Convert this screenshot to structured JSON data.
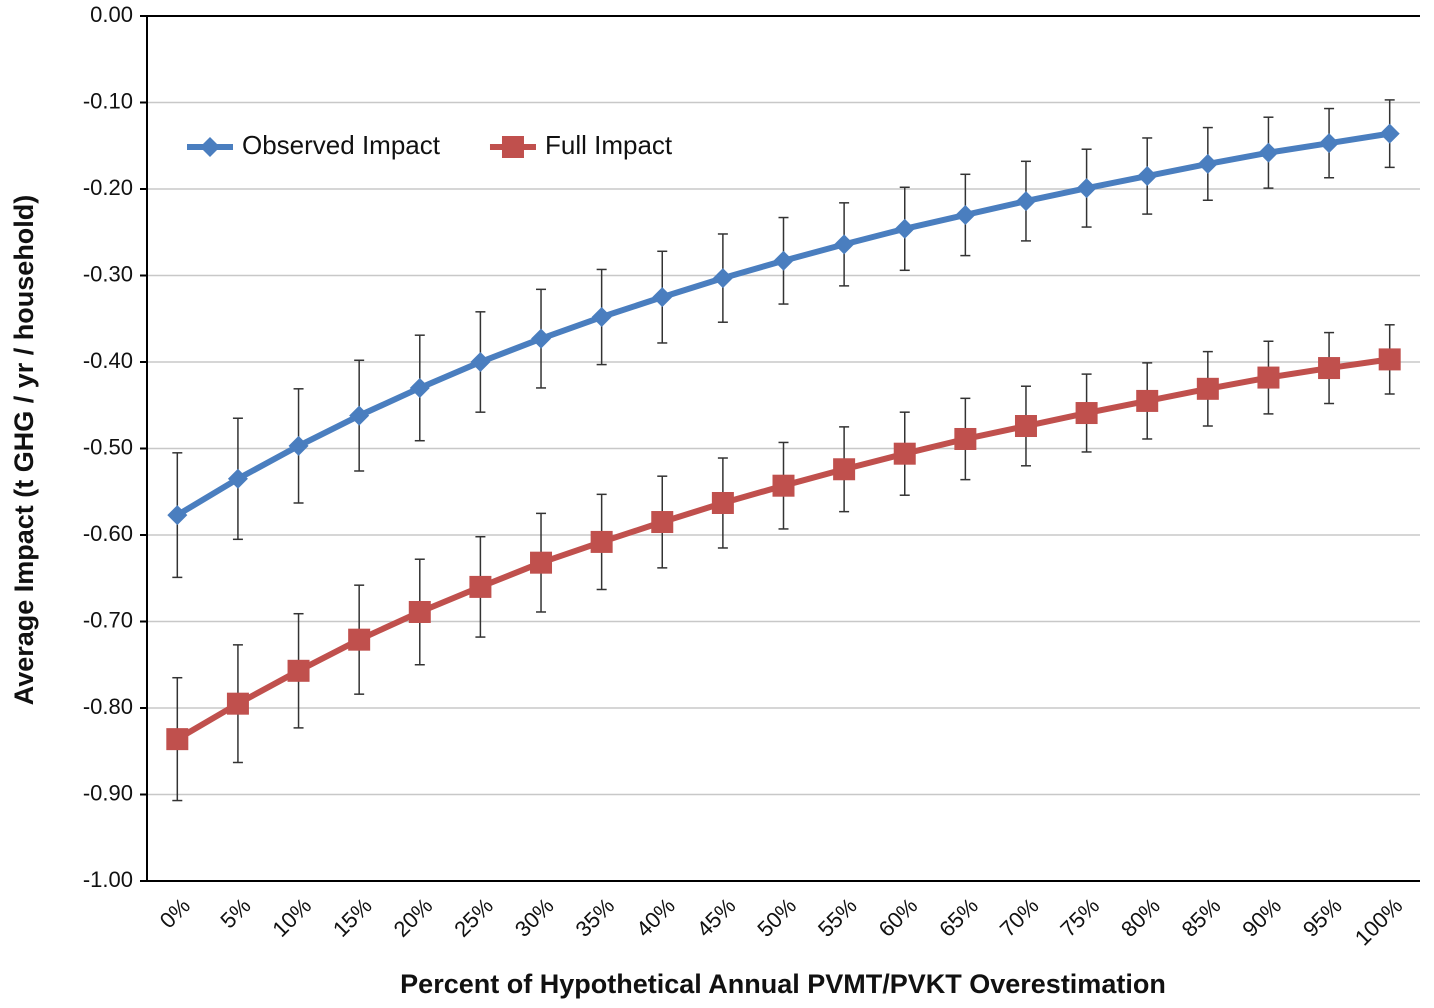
{
  "chart_data": {
    "type": "line",
    "x_label": "Percent of Hypothetical Annual PVMT/PVKT Overestimation",
    "y_label": "Average Impact (t GHG / yr / household)",
    "categories": [
      "0%",
      "5%",
      "10%",
      "15%",
      "20%",
      "25%",
      "30%",
      "35%",
      "40%",
      "45%",
      "50%",
      "55%",
      "60%",
      "65%",
      "70%",
      "75%",
      "80%",
      "85%",
      "90%",
      "95%",
      "100%"
    ],
    "series": [
      {
        "name": "Observed Impact",
        "color": "#4a7ebf",
        "marker": "diamond",
        "values": [
          -0.577,
          -0.535,
          -0.497,
          -0.462,
          -0.43,
          -0.4,
          -0.373,
          -0.348,
          -0.325,
          -0.303,
          -0.283,
          -0.264,
          -0.246,
          -0.23,
          -0.214,
          -0.199,
          -0.185,
          -0.171,
          -0.158,
          -0.147,
          -0.136
        ],
        "errors": [
          0.072,
          0.07,
          0.066,
          0.064,
          0.061,
          0.058,
          0.057,
          0.055,
          0.053,
          0.051,
          0.05,
          0.048,
          0.048,
          0.047,
          0.046,
          0.045,
          0.044,
          0.042,
          0.041,
          0.04,
          0.039
        ]
      },
      {
        "name": "Full Impact",
        "color": "#c0504d",
        "marker": "square",
        "values": [
          -0.836,
          -0.795,
          -0.757,
          -0.721,
          -0.689,
          -0.66,
          -0.632,
          -0.608,
          -0.585,
          -0.563,
          -0.543,
          -0.524,
          -0.506,
          -0.489,
          -0.474,
          -0.459,
          -0.445,
          -0.431,
          -0.418,
          -0.407,
          -0.397
        ],
        "errors": [
          0.071,
          0.068,
          0.066,
          0.063,
          0.061,
          0.058,
          0.057,
          0.055,
          0.053,
          0.052,
          0.05,
          0.049,
          0.048,
          0.047,
          0.046,
          0.045,
          0.044,
          0.043,
          0.042,
          0.041,
          0.04
        ]
      }
    ],
    "ylim": [
      -1.0,
      0.0
    ],
    "yticks": [
      {
        "value": 0,
        "label": "0.00"
      },
      {
        "value": -0.1,
        "label": "-0.10"
      },
      {
        "value": -0.2,
        "label": "-0.20"
      },
      {
        "value": -0.3,
        "label": "-0.30"
      },
      {
        "value": -0.4,
        "label": "-0.40"
      },
      {
        "value": -0.5,
        "label": "-0.50"
      },
      {
        "value": -0.6,
        "label": "-0.60"
      },
      {
        "value": -0.7,
        "label": "-0.70"
      },
      {
        "value": -0.8,
        "label": "-0.80"
      },
      {
        "value": -0.9,
        "label": "-0.90"
      },
      {
        "value": -1.0,
        "label": "-1.00"
      }
    ],
    "grid": true,
    "legend": "top-left"
  }
}
